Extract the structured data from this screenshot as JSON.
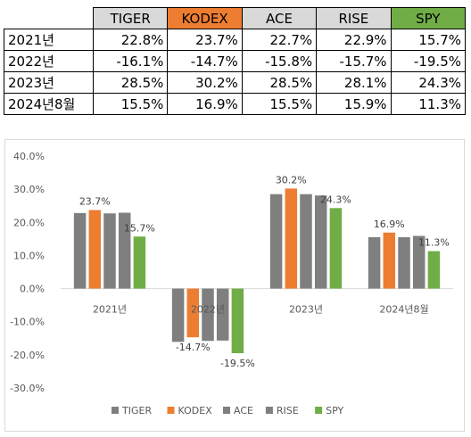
{
  "table": {
    "headers": [
      {
        "label": "TIGER",
        "bg": "#d9d9d9"
      },
      {
        "label": "KODEX",
        "bg": "#ed7d31"
      },
      {
        "label": "ACE",
        "bg": "#d9d9d9"
      },
      {
        "label": "RISE",
        "bg": "#d9d9d9"
      },
      {
        "label": "SPY",
        "bg": "#70ad47"
      }
    ],
    "rows": [
      {
        "label": "2021년",
        "cells": [
          "22.8%",
          "23.7%",
          "22.7%",
          "22.9%",
          "15.7%"
        ]
      },
      {
        "label": "2022년",
        "cells": [
          "-16.1%",
          "-14.7%",
          "-15.8%",
          "-15.7%",
          "-19.5%"
        ]
      },
      {
        "label": "2023년",
        "cells": [
          "28.5%",
          "30.2%",
          "28.5%",
          "28.1%",
          "24.3%"
        ]
      },
      {
        "label": "2024년8월",
        "cells": [
          "15.5%",
          "16.9%",
          "15.5%",
          "15.9%",
          "11.3%"
        ]
      }
    ]
  },
  "chart_data": {
    "type": "bar",
    "categories": [
      "2021년",
      "2022년",
      "2023년",
      "2024년8월"
    ],
    "series": [
      {
        "name": "TIGER",
        "color": "#7f7f7f",
        "values": [
          22.8,
          -16.1,
          28.5,
          15.5
        ]
      },
      {
        "name": "KODEX",
        "color": "#ed7d31",
        "values": [
          23.7,
          -14.7,
          30.2,
          16.9
        ]
      },
      {
        "name": "ACE",
        "color": "#7f7f7f",
        "values": [
          22.7,
          -15.8,
          28.5,
          15.5
        ]
      },
      {
        "name": "RISE",
        "color": "#7f7f7f",
        "values": [
          22.9,
          -15.7,
          28.1,
          15.9
        ]
      },
      {
        "name": "SPY",
        "color": "#70ad47",
        "values": [
          15.7,
          -19.5,
          24.3,
          11.3
        ]
      }
    ],
    "labeled_series": [
      "KODEX",
      "SPY"
    ],
    "ylim": [
      -30,
      40
    ],
    "yticks": [
      "40.0%",
      "30.0%",
      "20.0%",
      "10.0%",
      "0.0%",
      "-10.0%",
      "-20.0%",
      "-30.0%"
    ],
    "ytick_values": [
      40,
      30,
      20,
      10,
      0,
      -10,
      -20,
      -30
    ],
    "grid": false,
    "legend": "bottom"
  }
}
